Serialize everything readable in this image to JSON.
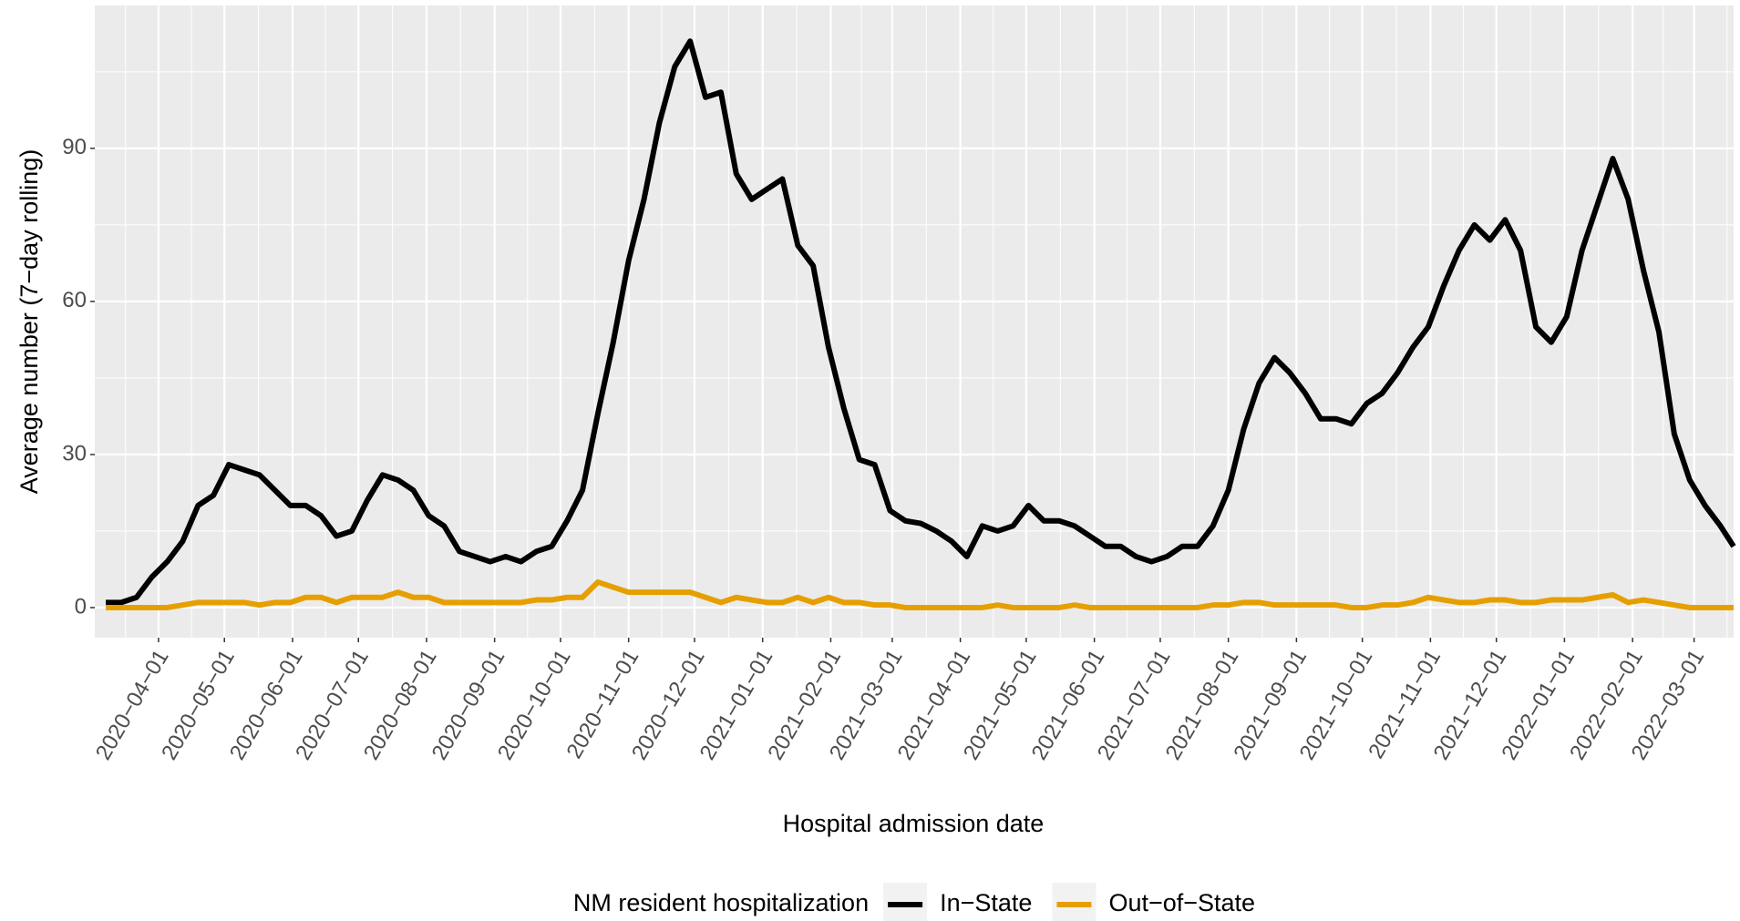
{
  "chart_data": {
    "type": "line",
    "x_label": "Hospital admission date",
    "y_label": "Average number (7−day rolling)",
    "legend_title": "NM resident hospitalization",
    "legend_position": "bottom",
    "grid": true,
    "xlim": [
      "2020-03-03",
      "2022-03-19"
    ],
    "ylim": [
      -5.9,
      118
    ],
    "yticks": [
      0,
      30,
      60,
      90
    ],
    "xticks": [
      {
        "value": "2020-04-01",
        "label": "2020−04−01"
      },
      {
        "value": "2020-05-01",
        "label": "2020−05−01"
      },
      {
        "value": "2020-06-01",
        "label": "2020−06−01"
      },
      {
        "value": "2020-07-01",
        "label": "2020−07−01"
      },
      {
        "value": "2020-08-01",
        "label": "2020−08−01"
      },
      {
        "value": "2020-09-01",
        "label": "2020−09−01"
      },
      {
        "value": "2020-10-01",
        "label": "2020−10−01"
      },
      {
        "value": "2020-11-01",
        "label": "2020−11−01"
      },
      {
        "value": "2020-12-01",
        "label": "2020−12−01"
      },
      {
        "value": "2021-01-01",
        "label": "2021−01−01"
      },
      {
        "value": "2021-02-01",
        "label": "2021−02−01"
      },
      {
        "value": "2021-03-01",
        "label": "2021−03−01"
      },
      {
        "value": "2021-04-01",
        "label": "2021−04−01"
      },
      {
        "value": "2021-05-01",
        "label": "2021−05−01"
      },
      {
        "value": "2021-06-01",
        "label": "2021−06−01"
      },
      {
        "value": "2021-07-01",
        "label": "2021−07−01"
      },
      {
        "value": "2021-08-01",
        "label": "2021−08−01"
      },
      {
        "value": "2021-09-01",
        "label": "2021−09−01"
      },
      {
        "value": "2021-10-01",
        "label": "2021−10−01"
      },
      {
        "value": "2021-11-01",
        "label": "2021−11−01"
      },
      {
        "value": "2021-12-01",
        "label": "2021−12−01"
      },
      {
        "value": "2022-01-01",
        "label": "2022−01−01"
      },
      {
        "value": "2022-02-01",
        "label": "2022−02−01"
      },
      {
        "value": "2022-03-01",
        "label": "2022−03−01"
      }
    ],
    "x": [
      "2020-03-08",
      "2020-03-15",
      "2020-03-22",
      "2020-03-29",
      "2020-04-05",
      "2020-04-12",
      "2020-04-19",
      "2020-04-26",
      "2020-05-03",
      "2020-05-10",
      "2020-05-17",
      "2020-05-24",
      "2020-05-31",
      "2020-06-07",
      "2020-06-14",
      "2020-06-21",
      "2020-06-28",
      "2020-07-05",
      "2020-07-12",
      "2020-07-19",
      "2020-07-26",
      "2020-08-02",
      "2020-08-09",
      "2020-08-16",
      "2020-08-23",
      "2020-08-30",
      "2020-09-06",
      "2020-09-13",
      "2020-09-20",
      "2020-09-27",
      "2020-10-04",
      "2020-10-11",
      "2020-10-18",
      "2020-10-25",
      "2020-11-01",
      "2020-11-08",
      "2020-11-15",
      "2020-11-22",
      "2020-11-29",
      "2020-12-06",
      "2020-12-13",
      "2020-12-20",
      "2020-12-27",
      "2021-01-03",
      "2021-01-10",
      "2021-01-17",
      "2021-01-24",
      "2021-01-31",
      "2021-02-07",
      "2021-02-14",
      "2021-02-21",
      "2021-02-28",
      "2021-03-07",
      "2021-03-14",
      "2021-03-21",
      "2021-03-28",
      "2021-04-04",
      "2021-04-11",
      "2021-04-18",
      "2021-04-25",
      "2021-05-02",
      "2021-05-09",
      "2021-05-16",
      "2021-05-23",
      "2021-05-30",
      "2021-06-06",
      "2021-06-13",
      "2021-06-20",
      "2021-06-27",
      "2021-07-04",
      "2021-07-11",
      "2021-07-18",
      "2021-07-25",
      "2021-08-01",
      "2021-08-08",
      "2021-08-15",
      "2021-08-22",
      "2021-08-29",
      "2021-09-05",
      "2021-09-12",
      "2021-09-19",
      "2021-09-26",
      "2021-10-03",
      "2021-10-10",
      "2021-10-17",
      "2021-10-24",
      "2021-10-31",
      "2021-11-07",
      "2021-11-14",
      "2021-11-21",
      "2021-11-28",
      "2021-12-05",
      "2021-12-12",
      "2021-12-19",
      "2021-12-26",
      "2022-01-02",
      "2022-01-09",
      "2022-01-16",
      "2022-01-23",
      "2022-01-30",
      "2022-02-06",
      "2022-02-13",
      "2022-02-20",
      "2022-02-27",
      "2022-03-06",
      "2022-03-13",
      "2022-03-19"
    ],
    "series": [
      {
        "name": "In−State",
        "color": "#000000",
        "values": [
          1,
          1,
          2,
          6,
          9,
          13,
          20,
          22,
          28,
          27,
          26,
          23,
          20,
          20,
          18,
          14,
          15,
          21,
          26,
          25,
          23,
          18,
          16,
          11,
          10,
          9,
          10,
          9,
          11,
          12,
          17,
          23,
          38,
          52,
          68,
          80,
          95,
          106,
          111,
          100,
          101,
          85,
          80,
          82,
          84,
          71,
          67,
          51,
          39,
          29,
          28,
          19,
          17,
          16.5,
          15,
          13,
          10,
          16,
          15,
          16,
          20,
          17,
          17,
          16,
          14,
          12,
          12,
          10,
          9,
          10,
          12,
          12,
          16,
          23,
          35,
          44,
          49,
          46,
          42,
          37,
          37,
          36,
          40,
          42,
          46,
          51,
          55,
          63,
          70,
          75,
          72,
          76,
          70,
          55,
          52,
          57,
          70,
          79,
          88,
          80,
          66,
          54,
          34,
          25,
          20,
          16,
          12
        ]
      },
      {
        "name": "Out−of−State",
        "color": "#E69F00",
        "values": [
          0,
          0,
          0,
          0,
          0,
          0.5,
          1,
          1,
          1,
          1,
          0.5,
          1,
          1,
          2,
          2,
          1,
          2,
          2,
          2,
          3,
          2,
          2,
          1,
          1,
          1,
          1,
          1,
          1,
          1.5,
          1.5,
          2,
          2,
          5,
          4,
          3,
          3,
          3,
          3,
          3,
          2,
          1,
          2,
          1.5,
          1,
          1,
          2,
          1,
          2,
          1,
          1,
          0.5,
          0.5,
          0,
          0,
          0,
          0,
          0,
          0,
          0.5,
          0,
          0,
          0,
          0,
          0.5,
          0,
          0,
          0,
          0,
          0,
          0,
          0,
          0,
          0.5,
          0.5,
          1,
          1,
          0.5,
          0.5,
          0.5,
          0.5,
          0.5,
          0,
          0,
          0.5,
          0.5,
          1,
          2,
          1.5,
          1,
          1,
          1.5,
          1.5,
          1,
          1,
          1.5,
          1.5,
          1.5,
          2,
          2.5,
          1,
          1.5,
          1,
          0.5,
          0,
          0,
          0,
          0
        ]
      }
    ]
  }
}
